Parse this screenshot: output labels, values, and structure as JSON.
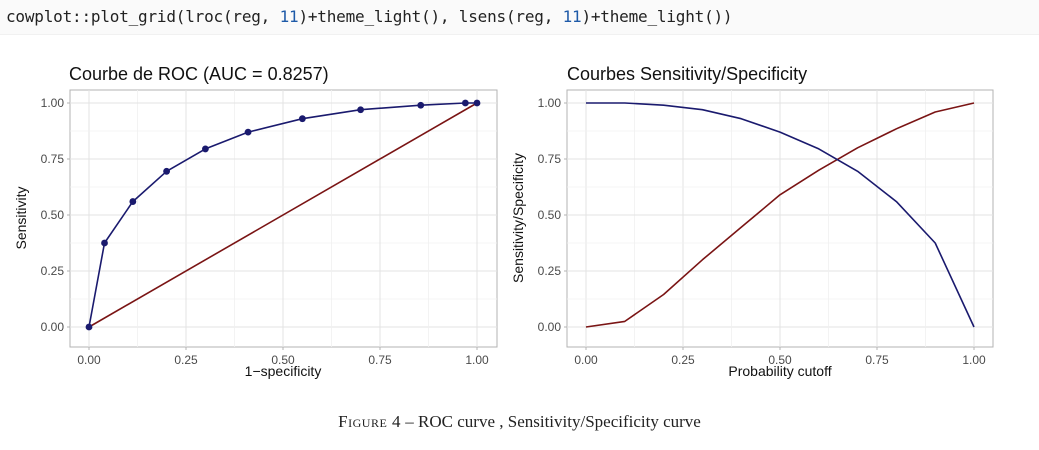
{
  "code": {
    "prefix": "cowplot::plot_grid(lroc(reg, ",
    "n1": "11",
    "middle": ")+theme_light(), lsens(reg, ",
    "n2": "11",
    "suffix": ")+theme_light())"
  },
  "caption": {
    "label": "Figure 4",
    "dash": " – ",
    "text": "ROC curve , Sensitivity/Specificity curve"
  },
  "colors": {
    "navy": "#1a1a6e",
    "darkred": "#7a1414",
    "grid": "#e8e8e8",
    "frame": "#b3b3b3"
  },
  "chart_data": [
    {
      "type": "line",
      "title": "Courbe de ROC (AUC = 0.8257)",
      "xlabel": "1−specificity",
      "ylabel": "Sensitivity",
      "xlim": [
        0,
        1
      ],
      "ylim": [
        0,
        1
      ],
      "x_ticks": [
        "0.00",
        "0.25",
        "0.50",
        "0.75",
        "1.00"
      ],
      "y_ticks": [
        "0.00",
        "0.25",
        "0.50",
        "0.75",
        "1.00"
      ],
      "grid": true,
      "series": [
        {
          "color": "#1a1a6e",
          "markers": true,
          "x": [
            0.0,
            0.04,
            0.113,
            0.2,
            0.3,
            0.41,
            0.55,
            0.7,
            0.855,
            0.97,
            1.0
          ],
          "y": [
            0.0,
            0.375,
            0.56,
            0.695,
            0.795,
            0.87,
            0.93,
            0.97,
            0.99,
            1.0,
            1.0
          ]
        },
        {
          "color": "#7a1414",
          "markers": false,
          "x": [
            0.0,
            1.0
          ],
          "y": [
            0.0,
            1.0
          ]
        }
      ]
    },
    {
      "type": "line",
      "title": "Courbes Sensitivity/Specificity",
      "xlabel": "Probability cutoff",
      "ylabel": "Sensitivity/Specificity",
      "xlim": [
        0,
        1
      ],
      "ylim": [
        0,
        1
      ],
      "x_ticks": [
        "0.00",
        "0.25",
        "0.50",
        "0.75",
        "1.00"
      ],
      "y_ticks": [
        "0.00",
        "0.25",
        "0.50",
        "0.75",
        "1.00"
      ],
      "grid": true,
      "series": [
        {
          "color": "#1a1a6e",
          "markers": false,
          "x": [
            0.0,
            0.1,
            0.2,
            0.3,
            0.4,
            0.5,
            0.6,
            0.7,
            0.8,
            0.9,
            1.0
          ],
          "y": [
            1.0,
            1.0,
            0.99,
            0.97,
            0.93,
            0.87,
            0.795,
            0.695,
            0.56,
            0.375,
            0.0
          ]
        },
        {
          "color": "#7a1414",
          "markers": false,
          "x": [
            0.0,
            0.1,
            0.2,
            0.3,
            0.4,
            0.5,
            0.6,
            0.7,
            0.8,
            0.9,
            1.0
          ],
          "y": [
            0.0,
            0.025,
            0.145,
            0.3,
            0.445,
            0.59,
            0.7,
            0.8,
            0.885,
            0.96,
            1.0
          ]
        }
      ]
    }
  ]
}
